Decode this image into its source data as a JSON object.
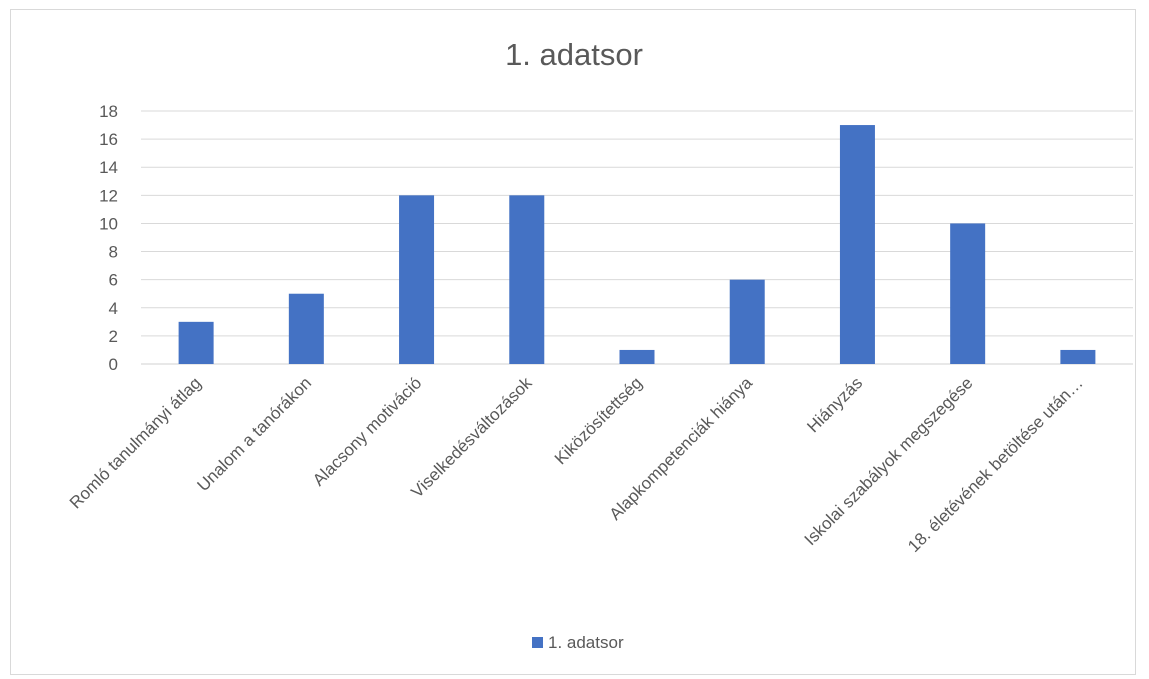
{
  "chart_data": {
    "type": "bar",
    "title": "1. adatsor",
    "xlabel": "",
    "ylabel": "",
    "ylim": [
      0,
      18
    ],
    "yticks": [
      0,
      2,
      4,
      6,
      8,
      10,
      12,
      14,
      16,
      18
    ],
    "grid": true,
    "legend_position": "bottom",
    "color": "#4472C4",
    "categories": [
      "Romló tanulmányi átlag",
      "Unalom a tanórákon",
      "Alacsony motiváció",
      "Viselkedésváltozások",
      "Kiközösítettség",
      "Alapkompetenciák hiánya",
      "Hiányzás",
      "Iskolai szabályok megszegése",
      "18. életévének betöltése után…"
    ],
    "series": [
      {
        "name": "1. adatsor",
        "values": [
          3,
          5,
          12,
          12,
          1,
          6,
          17,
          10,
          1
        ]
      }
    ]
  }
}
